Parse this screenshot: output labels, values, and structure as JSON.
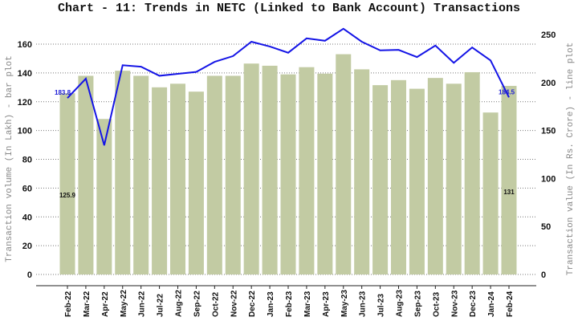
{
  "title": "Chart - 11: Trends in NETC (Linked to Bank Account) Transactions",
  "chart_data": {
    "type": "bar+line",
    "title": "Chart - 11: Trends in NETC (Linked to Bank Account) Transactions",
    "categories": [
      "Feb-22",
      "Mar-22",
      "Apr-22",
      "May-22",
      "Jun-22",
      "Jul-22",
      "Aug-22",
      "Sep-22",
      "Oct-22",
      "Nov-22",
      "Dec-22",
      "Jan-23",
      "Feb-23",
      "Mar-23",
      "Apr-23",
      "May-23",
      "Jun-23",
      "Jul-23",
      "Aug-23",
      "Sep-23",
      "Oct-23",
      "Nov-23",
      "Dec-23",
      "Jan-24",
      "Feb-24"
    ],
    "series": [
      {
        "name": "Transaction volume (In Lakh) - bar plot",
        "type": "bar",
        "axis": "left",
        "color": "#c2cba3",
        "values": [
          125.9,
          138,
          108,
          141.5,
          138,
          130,
          132.5,
          127,
          138,
          138,
          146.5,
          145,
          139,
          144,
          139.5,
          153,
          142.5,
          131.5,
          135,
          129,
          136.5,
          132.5,
          140.5,
          112.5,
          131
        ]
      },
      {
        "name": "Transaction value (In Rs. Crore) - line plot",
        "type": "line",
        "axis": "right",
        "color": "#1414e6",
        "values": [
          183.8,
          204,
          134.5,
          218,
          216.5,
          207,
          209,
          211,
          221.5,
          227.5,
          242.5,
          237.5,
          231,
          246,
          243.5,
          256,
          242.5,
          233.5,
          234,
          226.5,
          238.5,
          220.5,
          236.5,
          223,
          184.5
        ]
      }
    ],
    "annotations": {
      "bar_first": "125.9",
      "bar_last": "131",
      "line_first": "183.8",
      "line_last": "184.5"
    },
    "ylabel": "Transaction volume (In Lakh) - bar plot",
    "ylabel_right": "Transaction value (In Rs. Crore) - line plot",
    "xlabel": "",
    "ylim": [
      0,
      160
    ],
    "ylim_right": [
      0,
      250
    ],
    "yticks": [
      0,
      20,
      40,
      60,
      80,
      100,
      120,
      140,
      160
    ],
    "yticks_right": [
      0,
      50,
      100,
      150,
      200,
      250
    ],
    "grid": true,
    "legend": "none"
  }
}
